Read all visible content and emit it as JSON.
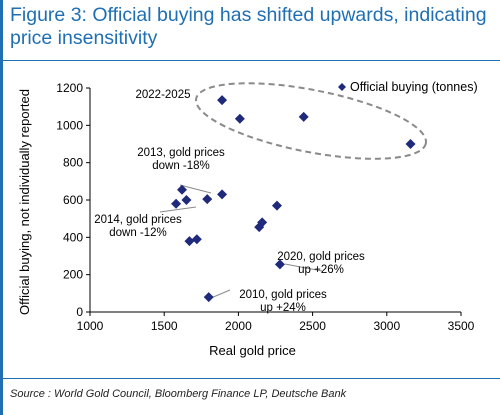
{
  "header": {
    "title": "Figure 3: Official buying has shifted upwards, indicating price insensitivity"
  },
  "footer": {
    "source": "Source : World Gold Council, Bloomberg Finance LP, Deutsche Bank"
  },
  "colors": {
    "accent": "#1f6fb2",
    "marker": "#1f2a7a",
    "ellipse": "#8a8a8a",
    "annotation_line": "#8a8a8a"
  },
  "chart_data": {
    "type": "scatter",
    "title": "",
    "xlabel": "Real gold price",
    "ylabel": "Official buying, not individually reported",
    "xlim": [
      1000,
      3500
    ],
    "ylim": [
      0,
      1200
    ],
    "x_ticks": [
      "1000",
      "1500",
      "2000",
      "2500",
      "3000",
      "3500"
    ],
    "y_ticks": [
      "0",
      "200",
      "400",
      "600",
      "800",
      "1000",
      "1200"
    ],
    "grid": false,
    "legend_position": "top-right",
    "series": [
      {
        "name": "Official buying (tonnes)",
        "marker": "diamond",
        "points": [
          {
            "x": 1890,
            "y": 1135
          },
          {
            "x": 2010,
            "y": 1035
          },
          {
            "x": 2440,
            "y": 1045
          },
          {
            "x": 3160,
            "y": 900
          },
          {
            "x": 1620,
            "y": 655
          },
          {
            "x": 1890,
            "y": 630
          },
          {
            "x": 1650,
            "y": 600
          },
          {
            "x": 1790,
            "y": 605
          },
          {
            "x": 1580,
            "y": 580
          },
          {
            "x": 2260,
            "y": 570
          },
          {
            "x": 2160,
            "y": 480
          },
          {
            "x": 2140,
            "y": 455
          },
          {
            "x": 1720,
            "y": 390
          },
          {
            "x": 1670,
            "y": 380
          },
          {
            "x": 2280,
            "y": 255
          },
          {
            "x": 1800,
            "y": 80
          }
        ]
      }
    ],
    "annotations": [
      {
        "lines": [
          "2022-2025"
        ]
      },
      {
        "lines": [
          "2013, gold prices",
          "down -18%"
        ]
      },
      {
        "lines": [
          "2014, gold prices",
          "down -12%"
        ]
      },
      {
        "lines": [
          "2020, gold prices",
          "up +26%"
        ]
      },
      {
        "lines": [
          "2010, gold prices",
          "up +24%"
        ]
      }
    ]
  }
}
